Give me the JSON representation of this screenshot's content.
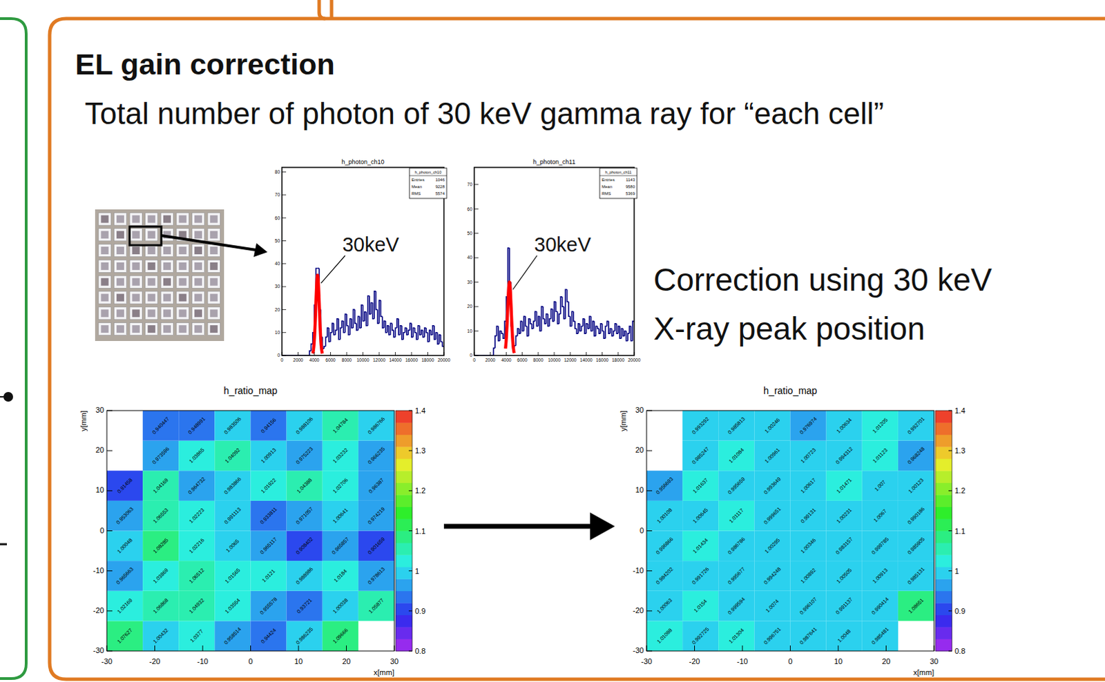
{
  "page": {
    "title": "EL gain correction",
    "subtitle": "Total number of photon of 30 keV gamma ray for “each cell”",
    "note_lines": [
      "Correction using 30 keV",
      "X-ray peak position"
    ]
  },
  "chart_data": [
    {
      "type": "histogram",
      "title": "h_photon_ch10",
      "color": "#000080",
      "bins": [
        0,
        200,
        400,
        600,
        800,
        1000,
        1200,
        1400,
        1600,
        1800,
        2000,
        2200,
        2400,
        2600,
        2800,
        3000,
        3200,
        3400,
        3600,
        3800,
        4000,
        4200,
        4400,
        4600,
        4800,
        5000,
        5200,
        5400,
        5600,
        5800,
        6000,
        6200,
        6400,
        6600,
        6800,
        7000,
        7200,
        7400,
        7600,
        7800,
        8000,
        8200,
        8400,
        8600,
        8800,
        9000,
        9200,
        9400,
        9600,
        9800,
        10000,
        10200,
        10400,
        10600,
        10800,
        11000,
        11200,
        11400,
        11600,
        11800,
        12000,
        12200,
        12400,
        12600,
        12800,
        13000,
        13200,
        13400,
        13600,
        13800,
        14000,
        14200,
        14400,
        14600,
        14800,
        15000,
        15200,
        15400,
        15600,
        15800,
        16000,
        16200,
        16400,
        16600,
        16800,
        17000,
        17200,
        17400,
        17600,
        17800,
        18000,
        18200,
        18400,
        18600,
        18800,
        19000,
        19200,
        19400,
        19600,
        19800,
        20000
      ],
      "values": [
        0,
        0,
        0,
        0,
        0,
        0,
        0,
        0,
        0,
        0,
        0,
        0,
        0,
        0,
        0,
        0,
        0,
        2,
        5,
        10,
        22,
        38,
        38,
        20,
        8,
        3,
        4,
        8,
        12,
        6,
        10,
        14,
        9,
        11,
        16,
        7,
        12,
        15,
        10,
        18,
        13,
        9,
        16,
        12,
        20,
        14,
        11,
        17,
        12,
        22,
        15,
        19,
        13,
        26,
        18,
        23,
        16,
        28,
        20,
        14,
        24,
        17,
        12,
        15,
        10,
        13,
        9,
        14,
        11,
        8,
        12,
        16,
        9,
        13,
        7,
        10,
        12,
        9,
        11,
        14,
        8,
        12,
        10,
        7,
        13,
        9,
        11,
        8,
        12,
        10,
        6,
        11,
        9,
        13,
        7,
        10,
        5,
        9,
        6,
        4
      ],
      "xlim": [
        0,
        20000
      ],
      "xticks": [
        0,
        2000,
        4000,
        6000,
        8000,
        10000,
        12000,
        14000,
        16000,
        18000,
        20000
      ],
      "ylim": [
        0,
        82
      ],
      "yticks": [
        0,
        10,
        20,
        30,
        40,
        50,
        60,
        70,
        80
      ],
      "stats_title": "h_photon_ch10",
      "stats": [
        {
          "label": "Entries",
          "value": 1046
        },
        {
          "label": "Mean",
          "value": 9228
        },
        {
          "label": "RMS",
          "value": 5574
        }
      ],
      "fit": {
        "color": "#ff0000",
        "amplitude": 35,
        "mean": 4400,
        "sigma": 220,
        "range": [
          3800,
          5000
        ]
      },
      "annotations": [
        {
          "text": "30keV"
        }
      ]
    },
    {
      "type": "histogram",
      "title": "h_photon_ch11",
      "color": "#000080",
      "bins": [
        0,
        200,
        400,
        600,
        800,
        1000,
        1200,
        1400,
        1600,
        1800,
        2000,
        2200,
        2400,
        2600,
        2800,
        3000,
        3200,
        3400,
        3600,
        3800,
        4000,
        4200,
        4400,
        4600,
        4800,
        5000,
        5200,
        5400,
        5600,
        5800,
        6000,
        6200,
        6400,
        6600,
        6800,
        7000,
        7200,
        7400,
        7600,
        7800,
        8000,
        8200,
        8400,
        8600,
        8800,
        9000,
        9200,
        9400,
        9600,
        9800,
        10000,
        10200,
        10400,
        10600,
        10800,
        11000,
        11200,
        11400,
        11600,
        11800,
        12000,
        12200,
        12400,
        12600,
        12800,
        13000,
        13200,
        13400,
        13600,
        13800,
        14000,
        14200,
        14400,
        14600,
        14800,
        15000,
        15200,
        15400,
        15600,
        15800,
        16000,
        16200,
        16400,
        16600,
        16800,
        17000,
        17200,
        17400,
        17600,
        17800,
        18000,
        18200,
        18400,
        18600,
        18800,
        19000,
        19200,
        19400,
        19600,
        19800,
        20000
      ],
      "values": [
        0,
        0,
        0,
        0,
        0,
        0,
        0,
        0,
        0,
        0,
        0,
        0,
        3,
        8,
        12,
        6,
        10,
        9,
        7,
        14,
        24,
        44,
        30,
        12,
        3,
        4,
        8,
        11,
        9,
        14,
        10,
        16,
        12,
        8,
        15,
        13,
        11,
        14,
        18,
        12,
        16,
        10,
        20,
        15,
        13,
        17,
        12,
        15,
        19,
        14,
        22,
        18,
        13,
        17,
        24,
        20,
        15,
        27,
        22,
        16,
        12,
        18,
        14,
        11,
        9,
        13,
        10,
        12,
        15,
        9,
        13,
        11,
        16,
        10,
        14,
        8,
        12,
        11,
        9,
        13,
        10,
        7,
        12,
        14,
        9,
        11,
        8,
        10,
        13,
        9,
        12,
        7,
        11,
        8,
        10,
        6,
        9,
        12,
        6,
        14
      ],
      "xlim": [
        0,
        20000
      ],
      "xticks": [
        0,
        2000,
        4000,
        6000,
        8000,
        10000,
        12000,
        14000,
        16000,
        18000,
        20000
      ],
      "ylim": [
        0,
        77
      ],
      "yticks": [
        0,
        10,
        20,
        30,
        40,
        50,
        60,
        70
      ],
      "stats_title": "h_photon_ch11",
      "stats": [
        {
          "label": "Entries",
          "value": 1143
        },
        {
          "label": "Mean",
          "value": 9580
        },
        {
          "label": "RMS",
          "value": 5369
        }
      ],
      "fit": {
        "color": "#ff0000",
        "amplitude": 30,
        "mean": 4400,
        "sigma": 230,
        "range": [
          3900,
          5000
        ]
      },
      "annotations": [
        {
          "text": "30keV"
        }
      ]
    },
    {
      "type": "heatmap",
      "title": "h_ratio_map",
      "x_label": "x[mm]",
      "y_label": "y[mm]",
      "xlim": [
        -30,
        30
      ],
      "ylim": [
        -30,
        30
      ],
      "xticks": [
        -30,
        -20,
        -10,
        0,
        10,
        20,
        30
      ],
      "yticks": [
        -30,
        -20,
        -10,
        0,
        10,
        20,
        30
      ],
      "xbins": [
        -30,
        -22.5,
        -15,
        -7.5,
        0,
        7.5,
        15,
        22.5,
        30
      ],
      "ybins": [
        -30,
        -22.5,
        -15,
        -7.5,
        0,
        7.5,
        15,
        22.5,
        30
      ],
      "cells": [
        [
          1.07627,
          1.00432,
          1.0377,
          0.958514,
          0.94424,
          0.986235,
          1.09666,
          null
        ],
        [
          1.02169,
          1.06868,
          1.04932,
          1.03554,
          0.955578,
          0.93721,
          1.00038,
          1.05877
        ],
        [
          0.965663,
          1.03869,
          1.06512,
          1.01565,
          1.0121,
          0.988986,
          1.0184,
          0.978613
        ],
        [
          1.00048,
          1.08285,
          1.02216,
          1.0065,
          0.965117,
          0.908402,
          0.965857,
          0.901659
        ],
        [
          0.953063,
          1.06553,
          1.02223,
          0.991113,
          0.933811,
          0.971057,
          1.00641,
          0.974219
        ],
        [
          0.91458,
          1.04169,
          0.964732,
          0.983866,
          1.01922,
          1.04388,
          1.02706,
          0.96387
        ],
        [
          null,
          0.973596,
          1.03865,
          1.04092,
          1.00913,
          0.975223,
          1.03232,
          0.966235
        ],
        [
          null,
          0.940447,
          0.948991,
          0.983506,
          0.94156,
          0.988106,
          1.04784,
          0.986766
        ]
      ],
      "zlim": [
        0.8,
        1.4
      ],
      "zticks": [
        0.8,
        0.9,
        1,
        1.1,
        1.2,
        1.3,
        1.4
      ],
      "data_labels": true
    },
    {
      "type": "heatmap",
      "title": "h_ratio_map",
      "x_label": "x[mm]",
      "y_label": "y[mm]",
      "xlim": [
        -30,
        30
      ],
      "ylim": [
        -30,
        30
      ],
      "xticks": [
        -30,
        -20,
        -10,
        0,
        10,
        20,
        30
      ],
      "yticks": [
        -30,
        -20,
        -10,
        0,
        10,
        20,
        30
      ],
      "xbins": [
        -30,
        -22.5,
        -15,
        -7.5,
        0,
        7.5,
        15,
        22.5,
        30
      ],
      "ybins": [
        -30,
        -22.5,
        -15,
        -7.5,
        0,
        7.5,
        15,
        22.5,
        30
      ],
      "cells": [
        [
          1.01088,
          0.992725,
          1.01304,
          0.996751,
          0.987641,
          1.0048,
          0.985481,
          null
        ],
        [
          1.00063,
          1.0154,
          0.999594,
          1.0074,
          0.996107,
          0.991137,
          0.990414,
          1.08651
        ],
        [
          0.984202,
          0.991726,
          0.995677,
          0.994248,
          1.00892,
          1.00505,
          1.00913,
          0.985131
        ],
        [
          0.996866,
          1.01434,
          0.986786,
          1.00295,
          1.00346,
          0.983157,
          0.999785,
          0.985905
        ],
        [
          1.00108,
          1.00645,
          1.01117,
          0.999651,
          0.99131,
          1.00231,
          1.0067,
          0.990186
        ],
        [
          0.956693,
          1.01637,
          0.995659,
          0.993649,
          1.00617,
          1.01471,
          1.007,
          1.00123
        ],
        [
          null,
          0.985247,
          1.01084,
          1.00961,
          1.00723,
          0.994312,
          1.01123,
          0.968248
        ],
        [
          null,
          0.993292,
          0.985813,
          1.00246,
          0.976974,
          1.00634,
          1.01205,
          0.992701
        ]
      ],
      "zlim": [
        0.8,
        1.4
      ],
      "zticks": [
        0.8,
        0.9,
        1,
        1.1,
        1.2,
        1.3,
        1.4
      ],
      "data_labels": true
    }
  ]
}
